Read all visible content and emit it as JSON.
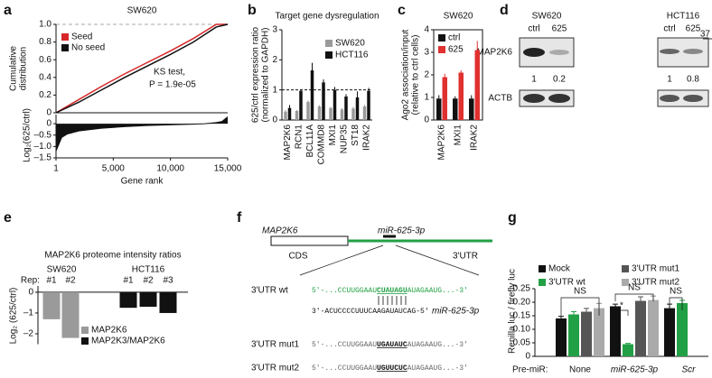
{
  "panel_labels": [
    "a",
    "b",
    "c",
    "d",
    "e",
    "f",
    "g"
  ],
  "chart_data": [
    {
      "type": "line",
      "title": "SW620",
      "x": [
        1,
        2000,
        4000,
        6000,
        8000,
        10000,
        12000,
        14000,
        15000
      ],
      "series": [
        {
          "name": "Seed",
          "color": "#d62728",
          "values": [
            0,
            0.15,
            0.3,
            0.44,
            0.57,
            0.7,
            0.84,
            1.0,
            1.0
          ]
        },
        {
          "name": "No seed",
          "color": "#111111",
          "values": [
            0,
            0.12,
            0.26,
            0.4,
            0.53,
            0.66,
            0.8,
            0.97,
            1.0
          ]
        }
      ],
      "xlim": [
        1,
        15000
      ],
      "ylim": [
        0,
        1
      ],
      "yticks": [
        0,
        0.2,
        0.4,
        0.6,
        0.8,
        {
          "value": 1,
          "label": "1.0"
        }
      ],
      "ylabel": [
        "Cumulative",
        "distribution"
      ],
      "annotations": [
        "KS test,",
        "P = 1.9e-05"
      ],
      "legend": "upper left"
    },
    {
      "type": "area",
      "color": "#111111",
      "x": [
        1,
        500,
        1000,
        2000,
        4000,
        6000,
        8000,
        10000,
        12000,
        13000,
        14000,
        14500,
        15000
      ],
      "values": [
        -1.2,
        -0.6,
        -0.45,
        -0.32,
        -0.2,
        -0.13,
        -0.08,
        -0.05,
        -0.02,
        0,
        0.05,
        0.1,
        0.3
      ],
      "xlim": [
        1,
        15000
      ],
      "ylim": [
        -1.5,
        0.4
      ],
      "xticks": [
        1,
        {
          "value": 5000,
          "label": "5,000"
        },
        {
          "value": 10000,
          "label": "10,000"
        },
        {
          "value": 15000,
          "label": "15,000"
        }
      ],
      "yticks": [
        {
          "value": 0,
          "label": "0"
        },
        {
          "value": -0.5,
          "label": "–0.5"
        },
        {
          "value": -1,
          "label": "–1.0"
        },
        {
          "value": -1.5,
          "label": "–1.5"
        }
      ],
      "xlabel": "Gene rank",
      "ylabel": [
        "Log₂(625/ctrl)"
      ]
    },
    {
      "type": "bar",
      "title": "Target gene dysregulation",
      "categories": [
        "MAP2K6",
        "RCN1",
        "BCL11A",
        "COMMD8",
        "MXI1",
        "NUP35",
        "ST18",
        "IRAK2"
      ],
      "series": [
        {
          "name": "SW620",
          "color": "#9a9a9a",
          "values": [
            0.28,
            0.3,
            0.6,
            0.45,
            0.4,
            0.35,
            0.38,
            0.45
          ],
          "errors": [
            0.05,
            0.03,
            0.05,
            0.04,
            0.04,
            0.04,
            0.06,
            0.05
          ]
        },
        {
          "name": "HCT116",
          "color": "#111111",
          "values": [
            0.4,
            0.97,
            1.65,
            1.25,
            1.0,
            0.78,
            0.75,
            0.97
          ],
          "errors": [
            0.1,
            0.05,
            0.25,
            0.1,
            0.1,
            0.08,
            0.2,
            0.1
          ]
        }
      ],
      "ylim": [
        0,
        3
      ],
      "yticks": [
        0,
        1,
        2,
        3
      ],
      "hline": 1,
      "ylabel": [
        "625/ctrl expression ratio",
        "(normalized to GAPDH)"
      ],
      "legend": "upper right"
    },
    {
      "type": "bar",
      "title": "SW620",
      "categories": [
        "MAP2K6",
        "MXI1",
        "IRAK2"
      ],
      "series": [
        {
          "name": "ctrl",
          "color": "#111111",
          "values": [
            0.95,
            0.95,
            0.95
          ],
          "errors": [
            0.15,
            0.1,
            0.15
          ]
        },
        {
          "name": "625",
          "color": "#e03030",
          "values": [
            1.9,
            2.1,
            3.1
          ],
          "errors": [
            0.15,
            0.1,
            0.4
          ]
        }
      ],
      "ylim": [
        0,
        4
      ],
      "yticks": [
        0,
        1,
        2,
        3,
        4
      ],
      "ylabel": [
        "Ago2 association/input",
        "(relative to ctrl cells)"
      ],
      "legend": "upper left"
    },
    {
      "type": "bar",
      "title": "MAP2K6 proteome intensity ratios",
      "group_labels": [
        "SW620",
        "HCT116"
      ],
      "rep_label": "Rep:",
      "categories": [
        "#1",
        "#2",
        "#1",
        "#2",
        "#3"
      ],
      "series": [
        {
          "name": "MAP2K6",
          "color": "#9a9a9a",
          "values": [
            -1.3,
            -2.2,
            null,
            null,
            null
          ]
        },
        {
          "name": "MAP2K3/MAP2K6",
          "color": "#111111",
          "values": [
            null,
            null,
            -0.75,
            -0.7,
            -1.0
          ]
        }
      ],
      "ylim": [
        -2.5,
        0.3
      ],
      "yticks": [
        {
          "value": 0,
          "label": "0"
        },
        {
          "value": -1,
          "label": "–1"
        },
        {
          "value": -2,
          "label": "–2"
        }
      ],
      "ylabel": [
        "Log₂ (625/ctrl)"
      ],
      "legend": "lower left"
    },
    {
      "type": "bar",
      "group_title": "Pre-miR:",
      "categories": [
        "None",
        "miR-625-3p",
        "Scr"
      ],
      "series": [
        {
          "name": "Mock",
          "color": "#111111",
          "values": [
            0.14,
            0.185,
            0.178
          ],
          "errors": [
            0.008,
            0.008,
            0.015
          ]
        },
        {
          "name": "3'UTR wt",
          "color": "#22a045",
          "values": [
            0.155,
            0.045,
            0.197
          ],
          "errors": [
            0.01,
            0.003,
            0.01
          ]
        },
        {
          "name": "3'UTR mut1",
          "color": "#555555",
          "values": [
            0.165,
            0.205,
            null
          ],
          "errors": [
            0.012,
            0.015,
            null
          ]
        },
        {
          "name": "3'UTR mut2",
          "color": "#aaaaaa",
          "values": [
            0.178,
            0.208,
            null
          ],
          "errors": [
            0.018,
            0.015,
            null
          ]
        }
      ],
      "ylim": [
        0,
        0.25
      ],
      "yticks": [
        0,
        0.05,
        {
          "value": 0.1,
          "label": "0.10"
        },
        0.15,
        {
          "value": 0.2,
          "label": "0.20"
        },
        0.25
      ],
      "ylabel": [
        "Renilla luc / firefly luc"
      ],
      "annotations": [
        "NS",
        "NS",
        "*",
        "NS"
      ],
      "legend": "top"
    }
  ],
  "blot": {
    "cell_lines": [
      "SW620",
      "HCT116"
    ],
    "lanes": [
      "ctrl",
      "625",
      "ctrl",
      "625"
    ],
    "marker": "37",
    "proteins": [
      "MAP2K6",
      "ACTB"
    ],
    "quantification": [
      "1",
      "0.2",
      "1",
      "0.8"
    ]
  },
  "diagram": {
    "gene": "MAP2K6",
    "mirna": "miR-625-3p",
    "regions": [
      "CDS",
      "3'UTR"
    ],
    "rows": [
      {
        "label": "3'UTR wt",
        "prefix": "5'-...CCUUGGAAU",
        "site": "CUAUAGU",
        "suffix": "AUAGAAUG...-3'"
      },
      {
        "label": "3'UTR mut1",
        "prefix": "5'-...CCUUGGAAU",
        "site": "UGAUAUC",
        "suffix": "AUAGAAUG...-3'"
      },
      {
        "label": "3'UTR mut2",
        "prefix": "5'-...CCUUGGAAU",
        "site": "UGUUCUC",
        "suffix": "AUAGAAUG...-3'"
      }
    ],
    "mirna_sequence": "3'-ACUCCCCUUUCAAGAUAUCAG-5'",
    "mirna_label": "miR-625-3p"
  }
}
